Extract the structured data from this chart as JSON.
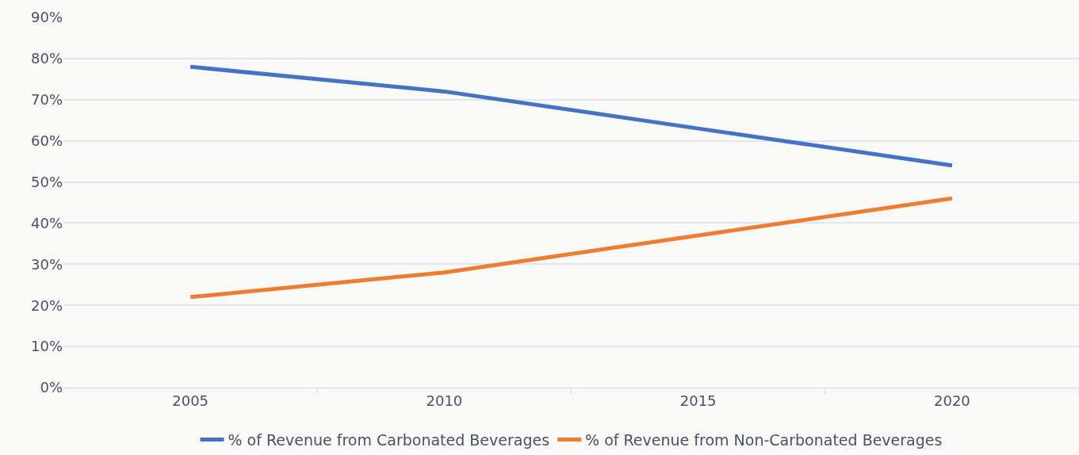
{
  "chart_data": {
    "type": "line",
    "categories": [
      "2005",
      "2010",
      "2015",
      "2020"
    ],
    "series": [
      {
        "name": "% of Revenue from Carbonated Beverages",
        "color": "#4472c4",
        "values": [
          78,
          72,
          63,
          54
        ]
      },
      {
        "name": "% of Revenue from Non-Carbonated Beverages",
        "color": "#ed7d31",
        "values": [
          22,
          28,
          37,
          46
        ]
      }
    ],
    "ylim": [
      0,
      90
    ],
    "yticks": [
      {
        "value": 0,
        "label": "0%"
      },
      {
        "value": 10,
        "label": "10%"
      },
      {
        "value": 20,
        "label": "20%"
      },
      {
        "value": 30,
        "label": "30%"
      },
      {
        "value": 40,
        "label": "40%"
      },
      {
        "value": 50,
        "label": "50%"
      },
      {
        "value": 60,
        "label": "60%"
      },
      {
        "value": 70,
        "label": "70%"
      },
      {
        "value": 80,
        "label": "80%"
      },
      {
        "value": 90,
        "label": "90%"
      }
    ],
    "grid": "y",
    "legend": "bottom",
    "marker": "none",
    "line_style": "solid"
  }
}
